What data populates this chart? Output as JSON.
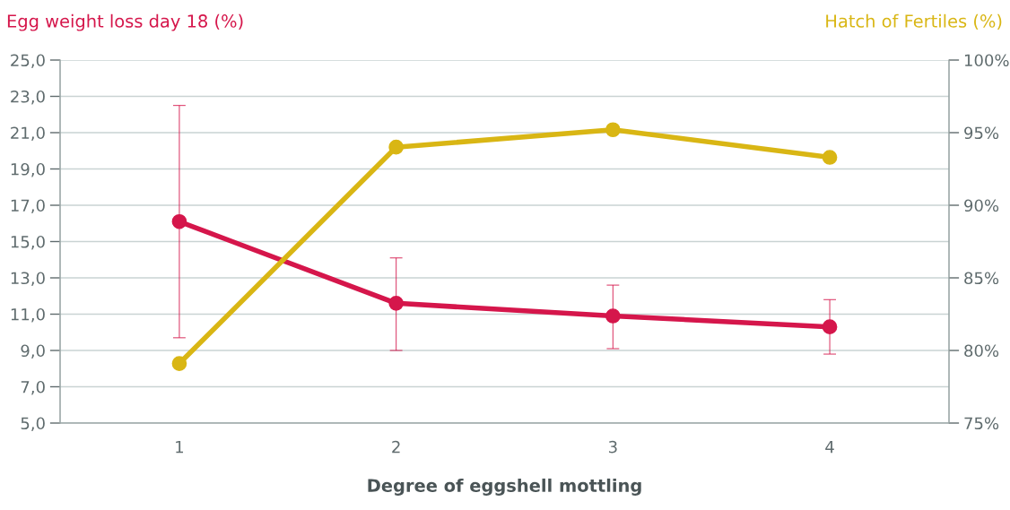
{
  "chart_data": {
    "type": "line",
    "xlabel": "Degree of eggshell mottling",
    "ylabel": "Egg weight loss day 18 (%)",
    "y2label": "Hatch of Fertiles (%)",
    "categories": [
      "1",
      "2",
      "3",
      "4"
    ],
    "series": [
      {
        "color": "#d5164b",
        "values": [
          16.1,
          11.6,
          10.9,
          10.3
        ],
        "errors": [
          [
            9.7,
            22.5
          ],
          [
            9.0,
            14.1
          ],
          [
            9.1,
            12.6
          ],
          [
            8.8,
            11.8
          ]
        ]
      },
      {
        "color": "#d9b614",
        "axis": "y2",
        "values": [
          79.1,
          94.0,
          95.2,
          93.3
        ]
      }
    ],
    "ylim": [
      5,
      25
    ],
    "yticks": [
      {
        "value": 5,
        "label": "5,0"
      },
      {
        "value": 7,
        "label": "7,0"
      },
      {
        "value": 9,
        "label": "9,0"
      },
      {
        "value": 11,
        "label": "11,0"
      },
      {
        "value": 13,
        "label": "13,0"
      },
      {
        "value": 15,
        "label": "15,0"
      },
      {
        "value": 17,
        "label": "17,0"
      },
      {
        "value": 19,
        "label": "19,0"
      },
      {
        "value": 21,
        "label": "21,0"
      },
      {
        "value": 23,
        "label": "23,0"
      },
      {
        "value": 25,
        "label": "25,0"
      }
    ],
    "y2lim": [
      75,
      100
    ],
    "y2ticks": [
      {
        "value": 75,
        "label": "75%"
      },
      {
        "value": 80,
        "label": "80%"
      },
      {
        "value": 85,
        "label": "85%"
      },
      {
        "value": 90,
        "label": "90%"
      },
      {
        "value": 95,
        "label": "95%"
      },
      {
        "value": 100,
        "label": "100%"
      }
    ],
    "grid": "y",
    "marker": "circle",
    "line_style": "solid"
  }
}
